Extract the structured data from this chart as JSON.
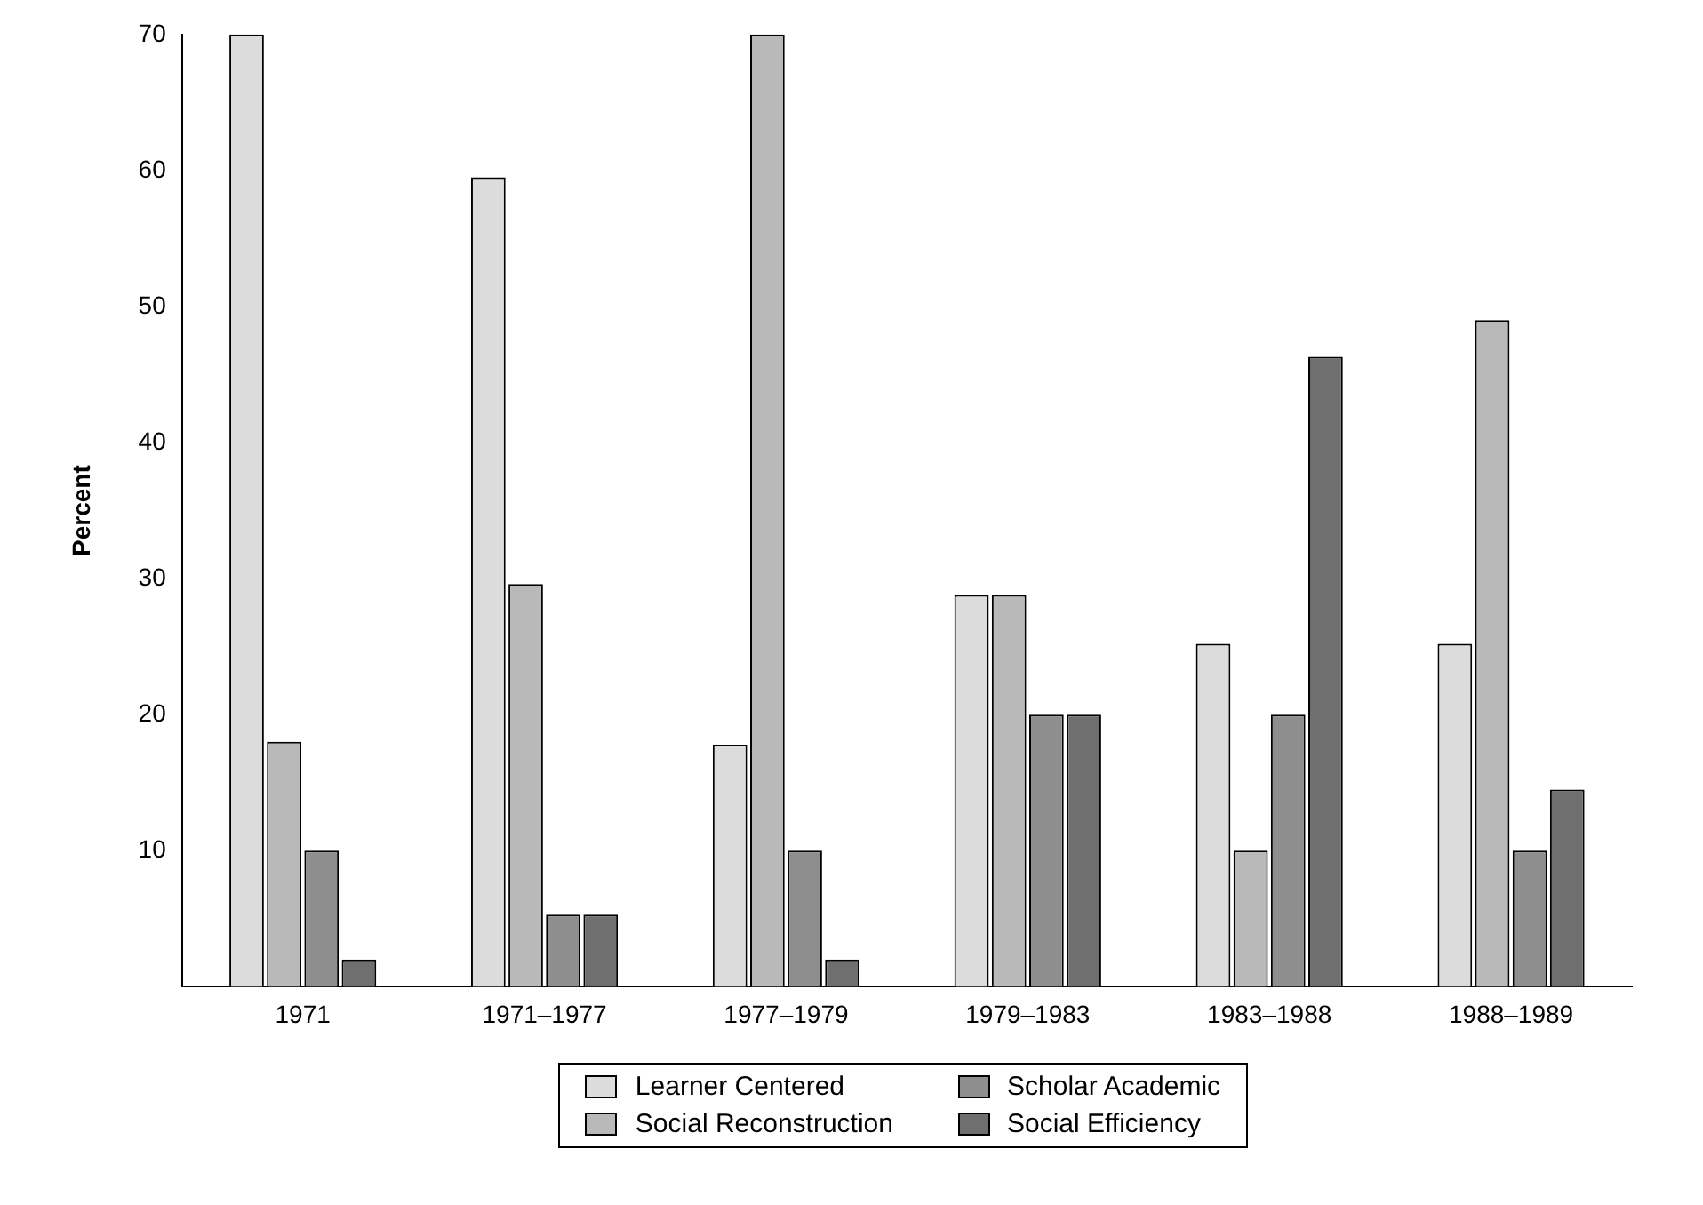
{
  "chart_data": {
    "type": "bar",
    "ylabel": "Percent",
    "categories": [
      "1971",
      "1971–1977",
      "1977–1979",
      "1979–1983",
      "1983–1988",
      "1988–1989"
    ],
    "series": [
      {
        "name": "Learner Centered",
        "color": "#dcdcdc",
        "values": [
          70,
          59.5,
          17.8,
          28.8,
          25.2,
          25.2
        ]
      },
      {
        "name": "Social Reconstruction",
        "color": "#b9b9b9",
        "values": [
          18,
          29.6,
          70,
          28.8,
          10,
          49
        ]
      },
      {
        "name": "Scholar Academic",
        "color": "#8e8e8e",
        "values": [
          10,
          5.3,
          10,
          20,
          20,
          10
        ]
      },
      {
        "name": "Social Efficiency",
        "color": "#6f6f6f",
        "values": [
          2,
          5.3,
          2,
          20,
          46.3,
          14.5
        ]
      }
    ],
    "ylim": [
      0,
      70
    ],
    "yticks": [
      10,
      20,
      30,
      40,
      50,
      60,
      70
    ],
    "grid": false,
    "legend": "bottom"
  }
}
